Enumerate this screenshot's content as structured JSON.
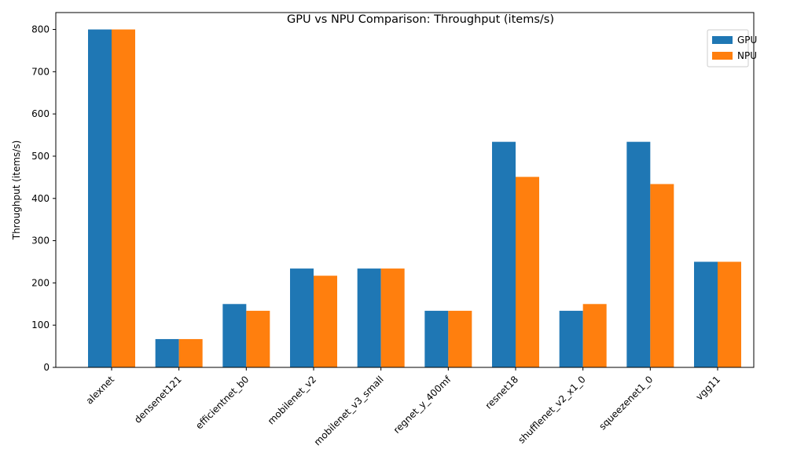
{
  "chart_data": {
    "type": "bar",
    "title": "GPU vs NPU Comparison: Throughput (items/s)",
    "xlabel": "",
    "ylabel": "Throughput (items/s)",
    "categories": [
      "alexnet",
      "densenet121",
      "efficientnet_b0",
      "mobilenet_v2",
      "mobilenet_v3_small",
      "regnet_y_400mf",
      "resnet18",
      "shufflenet_v2_x1_0",
      "squeezenet1_0",
      "vgg11"
    ],
    "series": [
      {
        "name": "GPU",
        "color": "#1f77b4",
        "values": [
          800,
          67,
          150,
          234,
          234,
          134,
          534,
          134,
          534,
          250
        ]
      },
      {
        "name": "NPU",
        "color": "#ff7f0e",
        "values": [
          800,
          67,
          134,
          217,
          234,
          134,
          451,
          150,
          434,
          250
        ]
      }
    ],
    "ylim": [
      0,
      840
    ],
    "yticks": [
      0,
      100,
      200,
      300,
      400,
      500,
      600,
      700,
      800
    ],
    "grid": false,
    "legend_position": "top-right"
  }
}
